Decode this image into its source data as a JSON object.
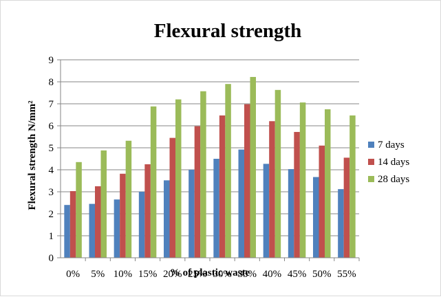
{
  "chart_data": {
    "type": "bar",
    "title": "Flexural strength",
    "xlabel": "% of plastic waste",
    "ylabel": "Flexural strength N/mm²",
    "ylim": [
      0,
      9
    ],
    "yticks": [
      0,
      1,
      2,
      3,
      4,
      5,
      6,
      7,
      8,
      9
    ],
    "grid": true,
    "legend_position": "right",
    "categories": [
      "0%",
      "5%",
      "10%",
      "15%",
      "20%",
      "25%",
      "30%",
      "35%",
      "40%",
      "45%",
      "50%",
      "55%"
    ],
    "series": [
      {
        "name": "7 days",
        "color": "#4f81bd",
        "values": [
          2.4,
          2.45,
          2.65,
          3.0,
          3.52,
          4.0,
          4.5,
          4.92,
          4.27,
          4.03,
          3.67,
          3.12
        ]
      },
      {
        "name": "14 days",
        "color": "#c0504d",
        "values": [
          3.03,
          3.25,
          3.82,
          4.25,
          5.45,
          5.98,
          6.47,
          6.98,
          6.21,
          5.72,
          5.1,
          4.55
        ]
      },
      {
        "name": "28 days",
        "color": "#9bbb59",
        "values": [
          4.35,
          4.88,
          5.32,
          6.88,
          7.2,
          7.57,
          7.9,
          8.22,
          7.63,
          7.06,
          6.75,
          6.47
        ]
      }
    ]
  }
}
